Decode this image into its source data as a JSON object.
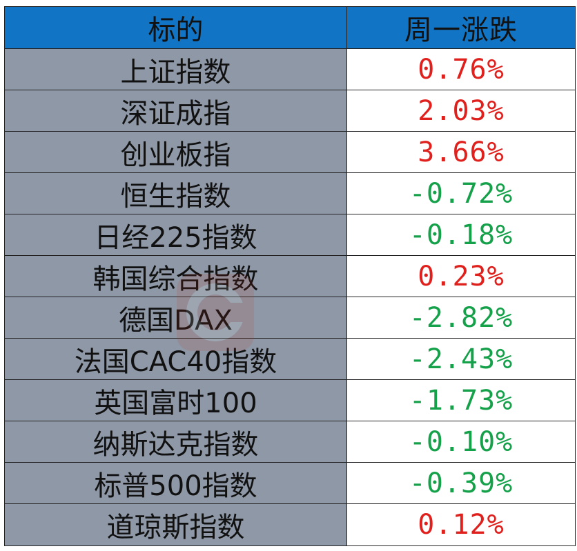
{
  "header": {
    "name_col": "标的",
    "change_col": "周一涨跌"
  },
  "rows": [
    {
      "name": "上证指数",
      "change": "0.76%",
      "dir": "up"
    },
    {
      "name": "深证成指",
      "change": "2.03%",
      "dir": "up"
    },
    {
      "name": "创业板指",
      "change": "3.66%",
      "dir": "up"
    },
    {
      "name": "恒生指数",
      "change": "-0.72%",
      "dir": "down"
    },
    {
      "name": "日经225指数",
      "change": "-0.18%",
      "dir": "down"
    },
    {
      "name": "韩国综合指数",
      "change": "0.23%",
      "dir": "up"
    },
    {
      "name": "德国DAX",
      "change": "-2.82%",
      "dir": "down"
    },
    {
      "name": "法国CAC40指数",
      "change": "-2.43%",
      "dir": "down"
    },
    {
      "name": "英国富时100",
      "change": "-1.73%",
      "dir": "down"
    },
    {
      "name": "纳斯达克指数",
      "change": "-0.10%",
      "dir": "down"
    },
    {
      "name": "标普500指数",
      "change": "-0.39%",
      "dir": "down"
    },
    {
      "name": "道琼斯指数",
      "change": "0.12%",
      "dir": "up"
    }
  ],
  "watermark": {
    "text": "财联社",
    "color": "#c0392b"
  },
  "colors": {
    "header_bg": "#1274c4",
    "name_bg": "#8e98a6",
    "up": "#e0201c",
    "down": "#15a04a"
  }
}
